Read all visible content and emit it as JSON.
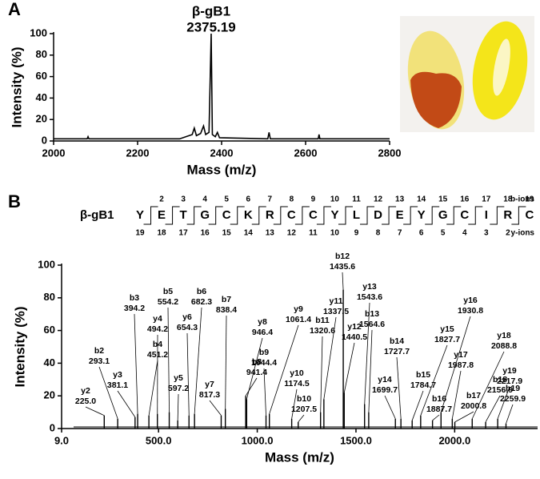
{
  "panel_labels": [
    "A",
    "B"
  ],
  "chart_data": [
    {
      "type": "line",
      "annotation": "β-gB1",
      "color": "#000000",
      "x": [
        2000,
        2080,
        2082,
        2084,
        2300,
        2330,
        2335,
        2340,
        2350,
        2357,
        2362,
        2370,
        2375.19,
        2378,
        2385,
        2390,
        2395,
        2510,
        2513,
        2516,
        2630,
        2632,
        2634,
        2800
      ],
      "values": [
        2,
        2,
        4,
        2,
        2,
        6,
        12,
        5,
        7,
        14,
        6,
        8,
        100,
        6,
        4,
        8,
        3,
        2,
        8,
        2,
        2,
        6,
        2,
        2
      ],
      "xlabel": "Mass (m/z)",
      "ylabel": "Intensity (%)",
      "xlim": [
        2000,
        2800
      ],
      "xticks": [
        2000,
        2200,
        2400,
        2600,
        2800
      ],
      "ylim": [
        0,
        100
      ],
      "yticks": [
        0,
        20,
        40,
        60,
        80,
        100
      ]
    },
    {
      "type": "stem",
      "color": "#000000",
      "ions": [
        "y2",
        "b2",
        "y3",
        "b3",
        "b4",
        "y4",
        "b5",
        "y5",
        "y6",
        "b6",
        "y7",
        "b7",
        "b8",
        "y8",
        "b9",
        "y9",
        "y10",
        "b10",
        "b11",
        "y11",
        "b12",
        "y12",
        "y13",
        "b13",
        "y14",
        "b14",
        "b15",
        "y15",
        "b16",
        "y16",
        "y17",
        "b17",
        "y18",
        "b18",
        "y19",
        "b19"
      ],
      "x": [
        225.0,
        293.1,
        381.1,
        394.2,
        451.2,
        494.2,
        554.2,
        597.2,
        654.3,
        682.3,
        817.3,
        838.4,
        941.4,
        946.4,
        1044.4,
        1061.4,
        1174.5,
        1207.5,
        1320.6,
        1337.5,
        1435.6,
        1440.5,
        1543.6,
        1564.6,
        1699.7,
        1727.7,
        1784.7,
        1827.7,
        1887.7,
        1930.8,
        1987.8,
        2000.8,
        2088.8,
        2156.9,
        2217.9,
        2259.9
      ],
      "x_labels": [
        "225.0",
        "293.1",
        "381.1",
        "394.2",
        "451.2",
        "494.2",
        "554.2",
        "597.2",
        "654.3",
        "682.3",
        "817.3",
        "838.4",
        "941.4",
        "946.4",
        "1044.4",
        "1061.4",
        "1174.5",
        "1207.5",
        "1320.6",
        "1337.5",
        "1435.6",
        "1440.5",
        "1543.6",
        "1564.6",
        "1699.7",
        "1727.7",
        "1784.7",
        "1827.7",
        "1887.7",
        "1930.8",
        "1987.8",
        "2000.8",
        "2088.8",
        "2156.9",
        "2217.9",
        "2259.9"
      ],
      "values": [
        8,
        6,
        7,
        9,
        8,
        9,
        10,
        5,
        8,
        9,
        8,
        12,
        20,
        18,
        8,
        9,
        6,
        4,
        10,
        18,
        85,
        22,
        15,
        10,
        6,
        6,
        5,
        8,
        5,
        10,
        6,
        4,
        6,
        4,
        6,
        3
      ],
      "xlabel": "Mass (m/z)",
      "ylabel": "Intensity (%)",
      "xlim": [
        9,
        2420
      ],
      "xticks": [
        {
          "value": 9,
          "label": "9.0"
        },
        {
          "value": 500,
          "label": "500.0"
        },
        {
          "value": 1000,
          "label": "1000.0"
        },
        {
          "value": 1500,
          "label": "1500.0"
        },
        {
          "value": 2000,
          "label": "2000.0"
        }
      ],
      "ylim": [
        0,
        100
      ],
      "yticks": [
        0,
        20,
        40,
        60,
        80,
        100
      ]
    }
  ],
  "sequence": {
    "peptide": "β-gB1",
    "residues": [
      "Y",
      "E",
      "T",
      "G",
      "C",
      "K",
      "R",
      "C",
      "C",
      "Y",
      "L",
      "D",
      "E",
      "Y",
      "G",
      "C",
      "I",
      "R",
      "C"
    ],
    "b_numbers": [
      2,
      3,
      4,
      5,
      6,
      7,
      8,
      9,
      10,
      11,
      12,
      13,
      14,
      15,
      16,
      17,
      18,
      19
    ],
    "y_numbers": [
      19,
      18,
      17,
      16,
      15,
      14,
      13,
      12,
      11,
      10,
      9,
      8,
      7,
      6,
      5,
      4,
      3,
      2
    ],
    "b_label": "b-ions",
    "y_label": "y-ions"
  }
}
